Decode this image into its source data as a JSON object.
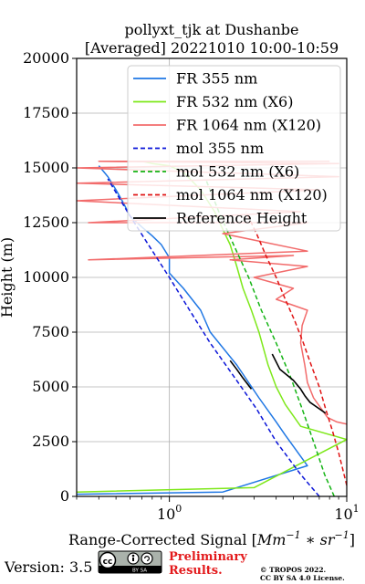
{
  "chart_data": {
    "type": "line",
    "title_line1": "pollyxt_tjk at Dushanbe",
    "title_line2": "[Averaged] 20221010 10:00-10:59",
    "xlabel_main": "Range-Corrected Signal [",
    "xlabel_unit1": "Mm",
    "xlabel_exp1": "−1",
    "xlabel_op": " ∗ ",
    "xlabel_unit2": "sr",
    "xlabel_exp2": "−1",
    "xlabel_end": "]",
    "ylabel": "Height (m)",
    "x_scale": "log",
    "xlim": [
      0.3,
      10
    ],
    "ylim": [
      0,
      20000
    ],
    "grid": true,
    "legend_position": "top-right",
    "xticks": [
      {
        "value": 1,
        "base": "10",
        "exp": "0"
      },
      {
        "value": 10,
        "base": "10",
        "exp": "1"
      }
    ],
    "yticks": [
      0,
      2500,
      5000,
      7500,
      10000,
      12500,
      15000,
      17500,
      20000
    ],
    "series": [
      {
        "name": "FR 355 nm",
        "color": "#1f77e4",
        "style": "solid",
        "width": 1.5,
        "x": [
          0.3,
          2.0,
          6.0,
          4.5,
          4.0,
          3.2,
          2.4,
          1.7,
          1.5,
          1.2,
          1.0,
          1.0,
          0.9,
          0.8,
          0.7,
          0.6,
          0.55,
          0.5,
          0.45,
          0.4
        ],
        "y": [
          100,
          200,
          1400,
          2800,
          3400,
          4500,
          6000,
          7500,
          8500,
          9500,
          10200,
          10900,
          11500,
          11900,
          12300,
          12800,
          13400,
          14000,
          14600,
          15100
        ]
      },
      {
        "name": "FR 532 nm (X6)",
        "color": "#7ee81a",
        "style": "solid",
        "width": 1.5,
        "x": [
          0.3,
          3.0,
          10.0,
          5.5,
          4.5,
          4.0,
          3.6,
          3.2,
          2.9,
          2.6,
          2.4,
          2.2,
          2.0,
          1.8,
          1.5,
          1.2,
          1.0,
          0.8,
          0.7
        ],
        "y": [
          200,
          400,
          2600,
          3200,
          4200,
          5000,
          6000,
          7500,
          8500,
          9500,
          10500,
          11500,
          12200,
          13000,
          14000,
          14800,
          15100,
          15200,
          15300
        ]
      },
      {
        "name": "FR 1064 nm (X120)",
        "color": "#f26b6b",
        "style": "solid",
        "width": 1.5,
        "x": [
          10.0,
          8.8,
          7.8,
          6.5,
          6.0,
          5.8,
          5.5,
          5.6,
          6.0,
          4.0,
          5.0,
          3.0,
          6.0,
          2.2,
          5.0,
          0.35,
          6.0,
          2.0,
          6.0,
          0.35,
          5.5,
          0.3,
          7.0,
          0.3,
          9.0,
          0.3,
          9.0,
          0.4,
          8.0
        ],
        "y": [
          3300,
          3400,
          3600,
          4500,
          5200,
          6000,
          7000,
          7800,
          8500,
          9000,
          9500,
          10000,
          10500,
          10800,
          11000,
          10800,
          11200,
          12000,
          12500,
          12500,
          13000,
          13500,
          14000,
          14300,
          14600,
          15000,
          15200,
          15300,
          15300
        ]
      },
      {
        "name": "mol 355 nm",
        "color": "#0a14d8",
        "style": "dashed",
        "width": 1.5,
        "x": [
          7.0,
          5.5,
          4.0,
          3.1,
          2.3,
          1.7,
          1.3,
          1.0,
          0.76,
          0.58,
          0.45
        ],
        "y": [
          0,
          1000,
          2500,
          4000,
          5500,
          7000,
          8500,
          10000,
          11500,
          13000,
          14500
        ]
      },
      {
        "name": "mol 532 nm (X6)",
        "color": "#14b414",
        "style": "dashed",
        "width": 1.5,
        "x": [
          8.5,
          7.5,
          6.5,
          5.6,
          4.8,
          4.0,
          3.3,
          2.8,
          2.3,
          1.9,
          1.6
        ],
        "y": [
          0,
          1000,
          2500,
          4000,
          5500,
          7000,
          8500,
          10000,
          11500,
          13000,
          14500
        ]
      },
      {
        "name": "mol 1064 nm (X120)",
        "color": "#e01414",
        "style": "dashed",
        "width": 1.5,
        "x": [
          10.0,
          9.0,
          8.3,
          7.6,
          7.0,
          6.3,
          5.7,
          5.1,
          4.5,
          4.0,
          3.5,
          3.1,
          2.7
        ],
        "y": [
          500,
          2000,
          3000,
          4000,
          5000,
          6000,
          7000,
          8000,
          9000,
          10000,
          11000,
          12000,
          13000
        ]
      },
      {
        "name": "Reference Height",
        "color": "#000000",
        "style": "solid",
        "width": 1.6,
        "groups": [
          {
            "x": [
              2.2,
              2.4,
              2.6,
              2.9
            ],
            "y": [
              6200,
              5800,
              5400,
              4900
            ]
          },
          {
            "x": [
              3.8,
              4.2,
              5.0,
              5.5,
              5.8,
              6.2,
              7.0,
              7.6
            ],
            "y": [
              6500,
              5800,
              5300,
              4900,
              4600,
              4300,
              4000,
              3800
            ]
          }
        ]
      }
    ]
  },
  "footer": {
    "version": "Version: 3.5",
    "preliminary_line1": "Preliminary",
    "preliminary_line2": "Results.",
    "copyright_line1": "© TROPOS 2022.",
    "copyright_line2": "CC BY SA 4.0 License.",
    "license_badge": "cc-by-sa-badge-icon",
    "badge_label": "BY  SA"
  }
}
